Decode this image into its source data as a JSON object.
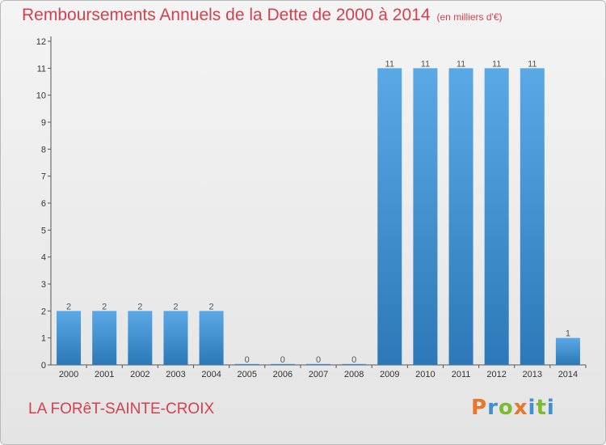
{
  "header": {
    "title": "Remboursements Annuels de la Dette de 2000 à 2014",
    "unit": "(en milliers d'€)"
  },
  "footer": {
    "commune": "LA FORêT-SAINTE-CROIX",
    "logo": "Proxiti"
  },
  "colors": {
    "title": "#d5404e",
    "bar_top": "#5aa9e6",
    "bar_bottom": "#2c78b8",
    "logo_letters": [
      "#e8762b",
      "#3f8fd2",
      "#7dba2f",
      "#e8762b",
      "#3f8fd2",
      "#7dba2f",
      "#3f8fd2"
    ]
  },
  "chart_data": {
    "type": "bar",
    "title": "Remboursements Annuels de la Dette de 2000 à 2014",
    "subtitle": "(en milliers d'€)",
    "xlabel": "",
    "ylabel": "",
    "categories": [
      "2000",
      "2001",
      "2002",
      "2003",
      "2004",
      "2005",
      "2006",
      "2007",
      "2008",
      "2009",
      "2010",
      "2011",
      "2012",
      "2013",
      "2014"
    ],
    "values": [
      2,
      2,
      2,
      2,
      2,
      0,
      0,
      0,
      0,
      11,
      11,
      11,
      11,
      11,
      1
    ],
    "value_labels": [
      "2",
      "2",
      "2",
      "2",
      "2",
      "0",
      "0",
      "0",
      "0",
      "11",
      "11",
      "11",
      "11",
      "11",
      "1"
    ],
    "y_ticks": [
      "0",
      "1",
      "2",
      "3",
      "4",
      "5",
      "6",
      "7",
      "8",
      "9",
      "10",
      "11",
      "12"
    ],
    "ylim": [
      0,
      12
    ],
    "grid": false,
    "legend": "none"
  }
}
